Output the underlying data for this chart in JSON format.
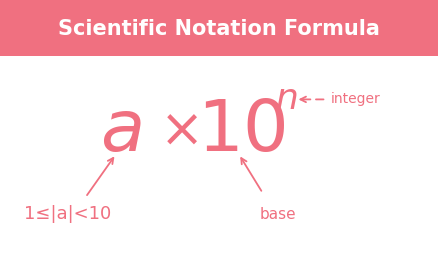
{
  "title": "Scientific Notation Formula",
  "title_bg_color": "#F07080",
  "title_text_color": "#FFFFFF",
  "formula_color": "#F07080",
  "bg_color": "#FFFFFF",
  "main_formula_a": "a",
  "main_formula_times": "×",
  "main_formula_10": "10",
  "main_formula_n": "n",
  "label_integer": "integer",
  "label_base": "base",
  "label_constraint": "1≤|a|<10",
  "fig_width": 4.38,
  "fig_height": 2.8,
  "title_fontsize": 15,
  "formula_a_fontsize": 52,
  "formula_times_fontsize": 38,
  "formula_10_fontsize": 52,
  "formula_n_fontsize": 26,
  "label_fontsize": 11,
  "constraint_fontsize": 13,
  "integer_fontsize": 10
}
